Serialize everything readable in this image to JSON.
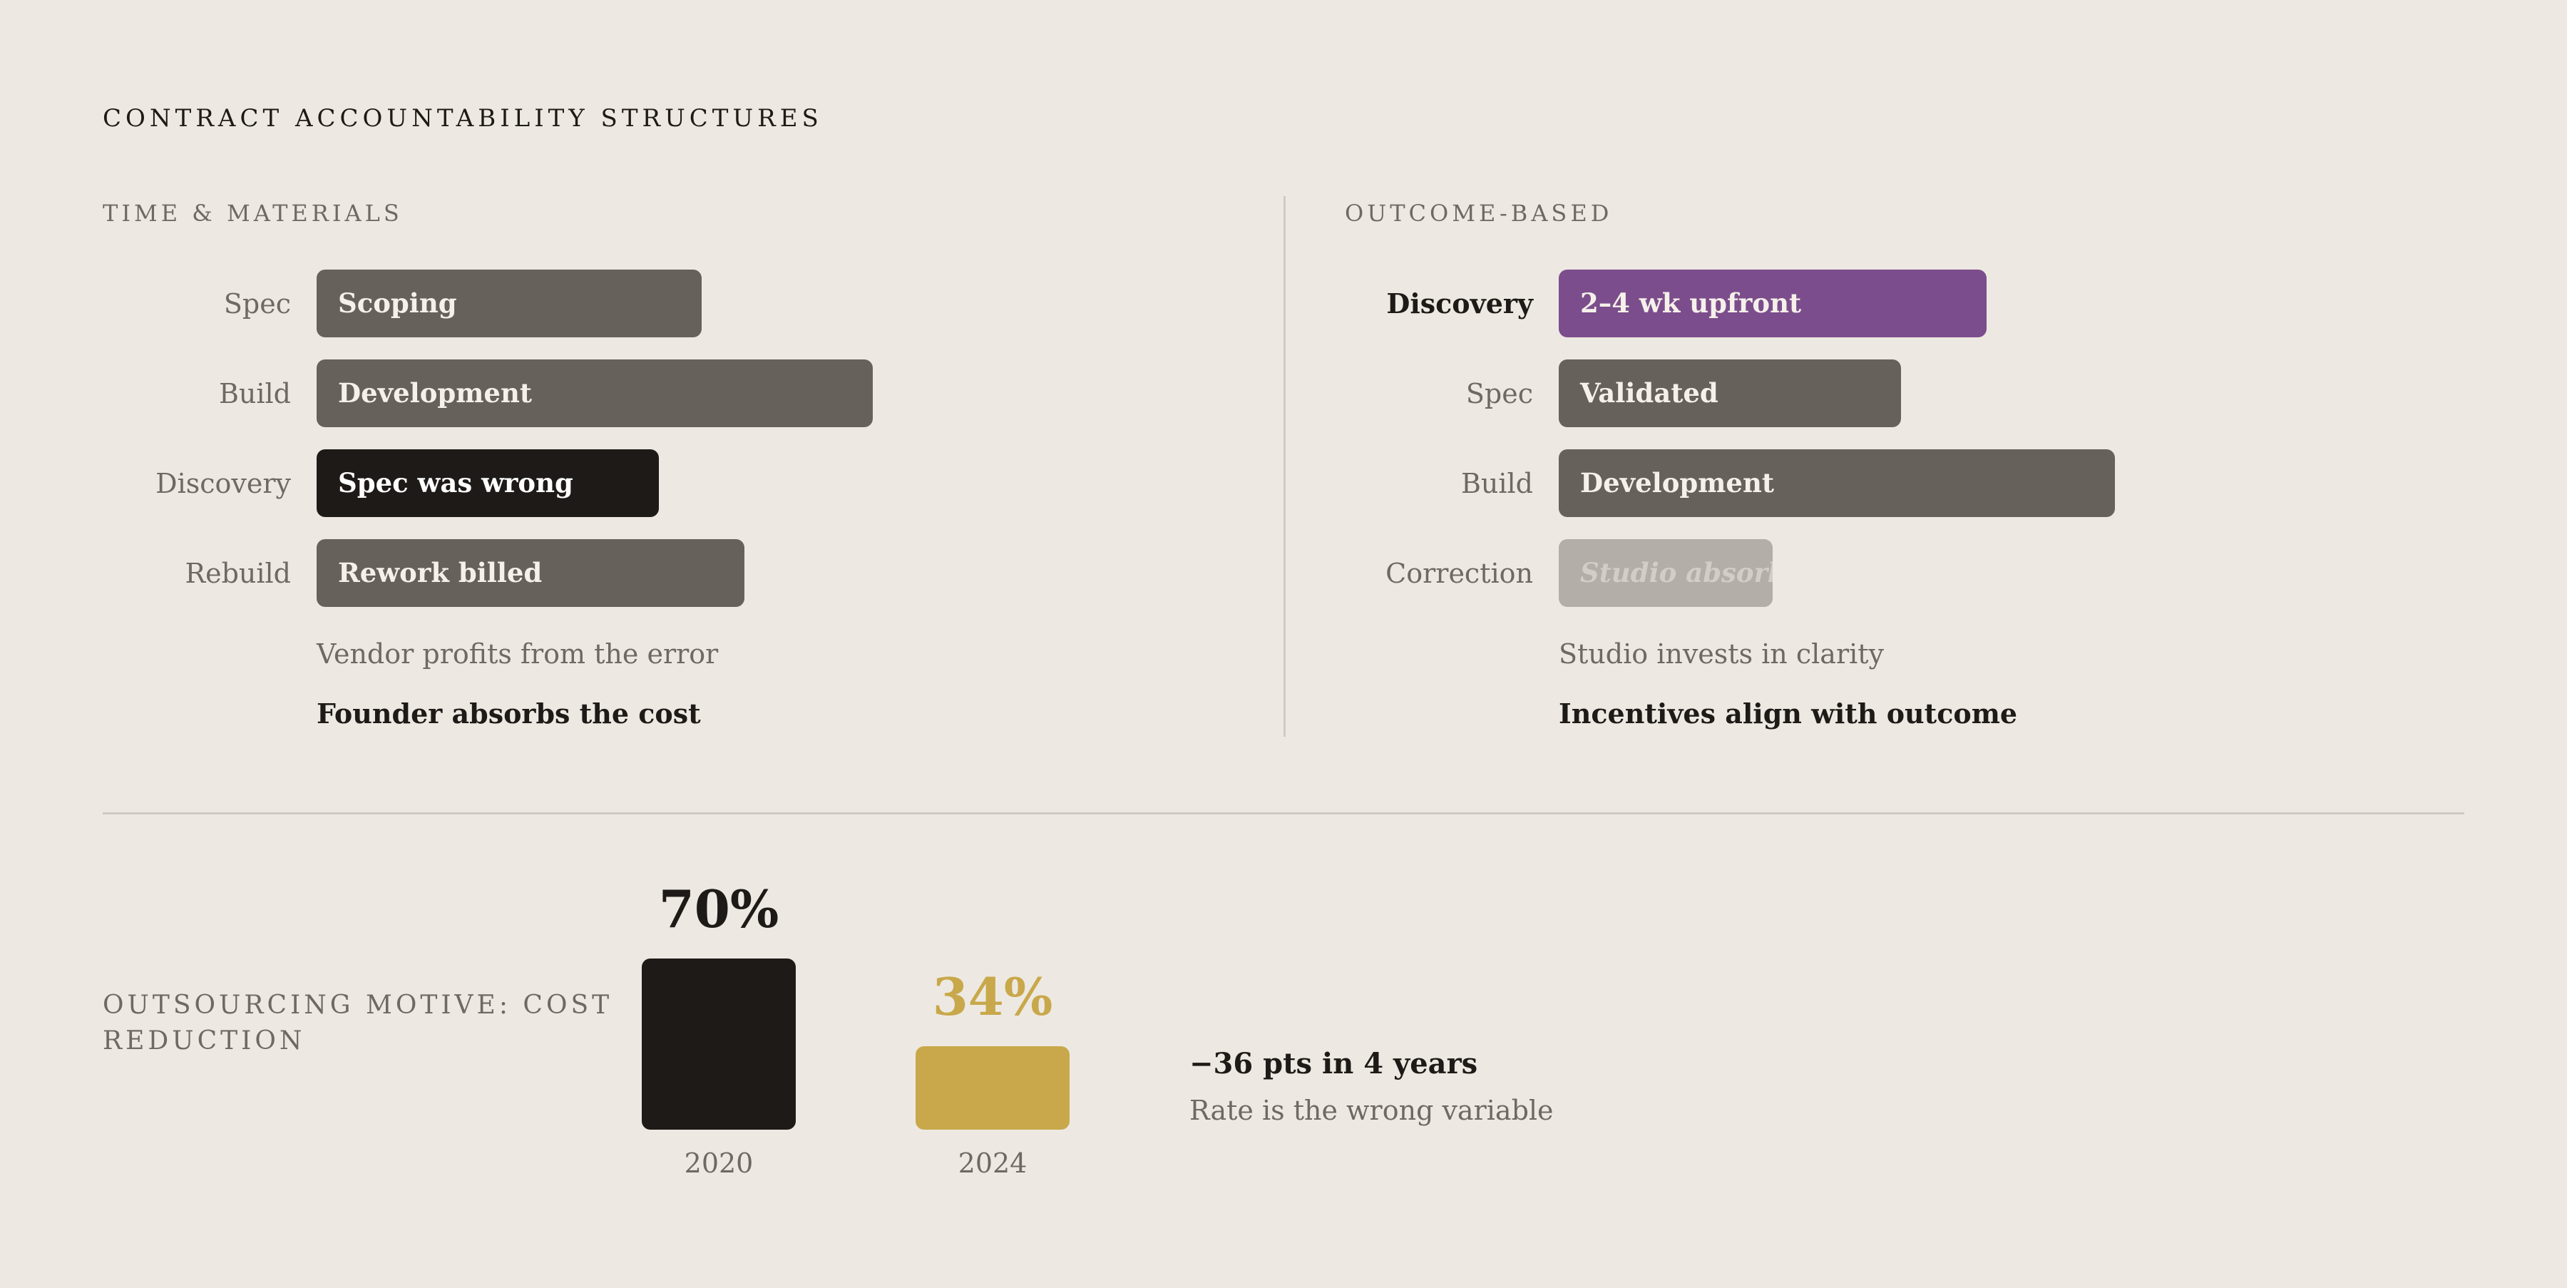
{
  "title": "CONTRACT ACCOUNTABILITY STRUCTURES",
  "colors": {
    "background": "#ede9e2",
    "bar_default": "#67615c",
    "bar_dark": "#1e1a17",
    "bar_purple": "#7c4d8c",
    "bar_muted": "#b3aea8",
    "accent_gold": "#c8a84b"
  },
  "chart_data": [
    {
      "type": "bar",
      "orientation": "horizontal",
      "title": "TIME & MATERIALS",
      "categories": [
        "Spec",
        "Build",
        "Discovery",
        "Rebuild"
      ],
      "bar_labels": [
        "Scoping",
        "Development",
        "Spec was wrong",
        "Rework billed"
      ],
      "values": [
        0.54,
        0.78,
        0.48,
        0.6
      ],
      "value_units": "relative length",
      "highlight": "Discovery",
      "notes": [
        "Vendor profits from the error",
        "Founder absorbs the cost"
      ]
    },
    {
      "type": "bar",
      "orientation": "horizontal",
      "title": "OUTCOME-BASED",
      "categories": [
        "Discovery",
        "Spec",
        "Build",
        "Correction"
      ],
      "bar_labels": [
        "2–4 wk upfront",
        "Validated",
        "Development",
        "Studio absorbs"
      ],
      "values": [
        0.6,
        0.48,
        0.78,
        0.3
      ],
      "value_units": "relative length",
      "highlight": "Discovery",
      "notes": [
        "Studio invests in clarity",
        "Incentives align with outcome"
      ]
    },
    {
      "type": "bar",
      "orientation": "vertical",
      "title": "OUTSOURCING MOTIVE: COST REDUCTION",
      "categories": [
        "2020",
        "2024"
      ],
      "values": [
        70,
        34
      ],
      "value_labels": [
        "70%",
        "34%"
      ],
      "ylim": [
        0,
        70
      ],
      "annotation": {
        "headline": "−36 pts in 4 years",
        "sub": "Rate is the wrong variable"
      }
    }
  ]
}
